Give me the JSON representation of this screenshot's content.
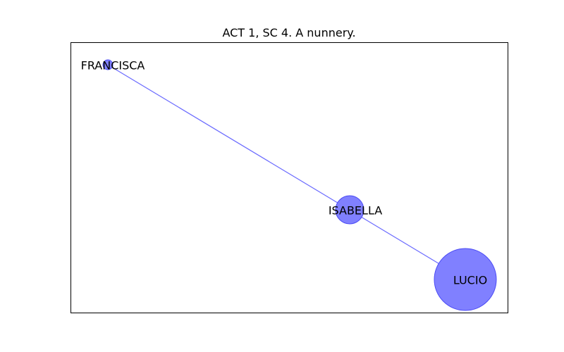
{
  "title": "ACT 1, SC 4. A nunnery.",
  "colors": {
    "node_fill": "#8080ff",
    "node_stroke": "#4b4bf5",
    "edge": "#6b6bff",
    "frame": "#000000"
  },
  "nodes": [
    {
      "id": "FRANCISCA",
      "label": "FRANCISCA"
    },
    {
      "id": "ISABELLA",
      "label": "ISABELLA"
    },
    {
      "id": "LUCIO",
      "label": "LUCIO"
    }
  ],
  "edges": [
    {
      "source": "FRANCISCA",
      "target": "LUCIO"
    }
  ]
}
